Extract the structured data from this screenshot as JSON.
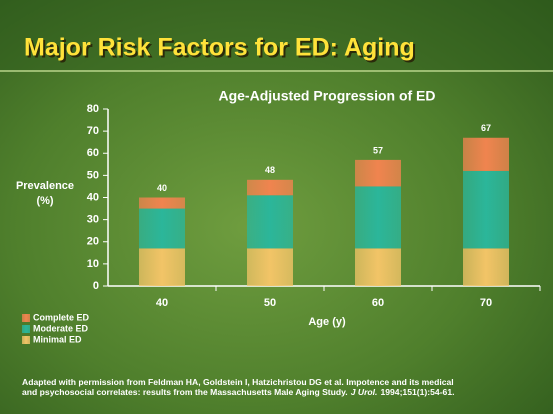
{
  "slide_title": "Major Risk Factors for ED: Aging",
  "chart_data": {
    "type": "stacked-bar",
    "title": "Age-Adjusted Progression of ED",
    "ylabel_lines": [
      "Prevalence",
      "(%)"
    ],
    "xlabel": "Age (y)",
    "categories": [
      "40",
      "50",
      "60",
      "70"
    ],
    "series": [
      {
        "name": "Minimal ED",
        "color": "#f2c467",
        "values": [
          17,
          17,
          17,
          17
        ]
      },
      {
        "name": "Moderate ED",
        "color": "#2bb69a",
        "values": [
          18,
          24,
          28,
          35
        ]
      },
      {
        "name": "Complete ED",
        "color": "#f0844f",
        "values": [
          5,
          7,
          12,
          15
        ]
      }
    ],
    "totals": [
      40,
      48,
      57,
      67
    ],
    "ylim": [
      0,
      80
    ],
    "yticks": [
      0,
      10,
      20,
      30,
      40,
      50,
      60,
      70,
      80
    ],
    "grid": false,
    "legend": "bottom-left"
  },
  "footnote": {
    "line1": "Adapted with permission from Feldman HA, Goldstein I, Hatzichristou DG et al. Impotence and its medical",
    "line2": "and psychosocial correlates: results from the Massachusetts Male Aging Study.",
    "journal": "J Urol.",
    "citation": "1994;151(1):54-61."
  }
}
